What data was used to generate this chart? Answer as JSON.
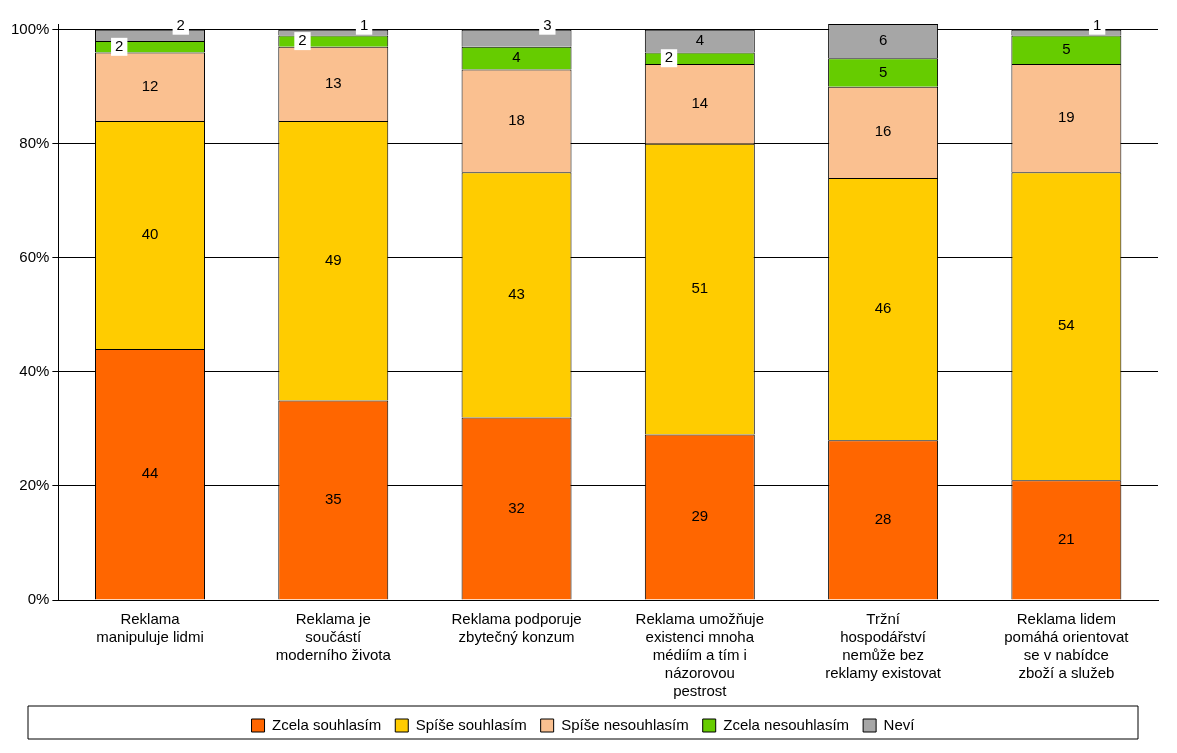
{
  "chart_data": {
    "type": "bar",
    "stacked": true,
    "categories": [
      "Reklama manipuluje lidmi",
      "Reklama je součástí moderního života",
      "Reklama podporuje zbytečný konzum",
      "Reklama umožňuje existenci mnoha médiím a tím i názorovou pestrost",
      "Tržní hospodářství nemůže bez reklamy existovat",
      "Reklama lidem pomáhá orientovat se v nabídce zboží a služeb"
    ],
    "series": [
      {
        "name": "Zcela souhlasím",
        "color": "#ff6600",
        "values": [
          44,
          35,
          32,
          29,
          28,
          21
        ]
      },
      {
        "name": "Spíše souhlasím",
        "color": "#ffcc00",
        "values": [
          40,
          49,
          43,
          51,
          46,
          54
        ]
      },
      {
        "name": "Spíše nesouhlasím",
        "color": "#fac090",
        "values": [
          12,
          13,
          18,
          14,
          16,
          19
        ]
      },
      {
        "name": "Zcela nesouhlasím",
        "color": "#66cc00",
        "values": [
          2,
          2,
          4,
          2,
          5,
          5
        ]
      },
      {
        "name": "Neví",
        "color": "#a6a6a6",
        "values": [
          2,
          1,
          3,
          4,
          6,
          1
        ]
      }
    ],
    "ylim": [
      0,
      101
    ],
    "yticks": [
      {
        "value": 0,
        "label": "0%"
      },
      {
        "value": 20,
        "label": "20%"
      },
      {
        "value": 40,
        "label": "40%"
      },
      {
        "value": 60,
        "label": "60%"
      },
      {
        "value": 80,
        "label": "80%"
      },
      {
        "value": 100,
        "label": "100%"
      }
    ],
    "grid": "y",
    "legend": "bottom",
    "data_labels": true
  }
}
